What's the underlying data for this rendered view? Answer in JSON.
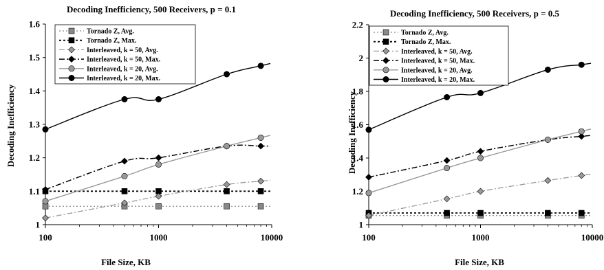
{
  "chart_data": [
    {
      "type": "line",
      "title": "Decoding Inefficiency, 500 Receivers, p = 0.1",
      "xlabel": "File Size, KB",
      "ylabel": "Decoding Inefficiency",
      "xscale": "log",
      "xlim": [
        100,
        10000
      ],
      "ylim": [
        1,
        1.6
      ],
      "xticks": [
        "100",
        "1000",
        "10000"
      ],
      "yticks": [
        "1",
        "1.1",
        "1.2",
        "1.3",
        "1.4",
        "1.5",
        "1.6"
      ],
      "legend_position": "top-left",
      "series": [
        {
          "name": "Tornado Z, Avg.",
          "x": [
            100,
            500,
            1000,
            4000,
            8000
          ],
          "values": [
            1.055,
            1.055,
            1.055,
            1.055,
            1.055
          ],
          "color": "#888888",
          "marker": "square",
          "line": "dotted-gray"
        },
        {
          "name": "Tornado Z, Max.",
          "x": [
            100,
            500,
            1000,
            4000,
            8000
          ],
          "values": [
            1.1,
            1.1,
            1.1,
            1.1,
            1.1
          ],
          "color": "#000000",
          "marker": "square",
          "line": "dotted-black"
        },
        {
          "name": "Interleaved, k = 50, Avg.",
          "x": [
            100,
            500,
            1000,
            4000,
            8000
          ],
          "values": [
            1.02,
            1.065,
            1.085,
            1.12,
            1.13
          ],
          "color": "#999999",
          "marker": "diamond",
          "line": "dashdot-gray"
        },
        {
          "name": "Interleaved, k = 50, Max.",
          "x": [
            100,
            500,
            1000,
            4000,
            8000
          ],
          "values": [
            1.105,
            1.19,
            1.2,
            1.235,
            1.235
          ],
          "color": "#000000",
          "marker": "diamond",
          "line": "dashdot-black"
        },
        {
          "name": "Interleaved, k = 20, Avg.",
          "x": [
            100,
            500,
            1000,
            4000,
            8000
          ],
          "values": [
            1.07,
            1.145,
            1.18,
            1.235,
            1.26
          ],
          "color": "#999999",
          "marker": "circle",
          "line": "solid"
        },
        {
          "name": "Interleaved, k = 20, Max.",
          "x": [
            100,
            500,
            1000,
            4000,
            8000
          ],
          "values": [
            1.285,
            1.375,
            1.375,
            1.45,
            1.475
          ],
          "color": "#000000",
          "marker": "circle",
          "line": "solid"
        }
      ]
    },
    {
      "type": "line",
      "title": "Decoding Inefficiency, 500 Receivers, p = 0.5",
      "xlabel": "File Size, KB",
      "ylabel": "Decoding Inefficiency",
      "xscale": "log",
      "xlim": [
        100,
        10000
      ],
      "ylim": [
        1,
        2.2
      ],
      "xticks": [
        "100",
        "1000",
        "10000"
      ],
      "yticks": [
        "1",
        "1.2",
        "1.4",
        "1.6",
        "1.8",
        "2",
        "2.2"
      ],
      "legend_position": "top-left",
      "series": [
        {
          "name": "Tornado Z, Avg.",
          "x": [
            100,
            500,
            1000,
            4000,
            8000
          ],
          "values": [
            1.055,
            1.055,
            1.055,
            1.055,
            1.055
          ],
          "color": "#888888",
          "marker": "square",
          "line": "dotted-gray"
        },
        {
          "name": "Tornado Z, Max.",
          "x": [
            100,
            500,
            1000,
            4000,
            8000
          ],
          "values": [
            1.07,
            1.07,
            1.07,
            1.07,
            1.07
          ],
          "color": "#000000",
          "marker": "square",
          "line": "dotted-black"
        },
        {
          "name": "Interleaved, k = 50, Avg.",
          "x": [
            100,
            500,
            1000,
            4000,
            8000
          ],
          "values": [
            1.055,
            1.155,
            1.2,
            1.265,
            1.295
          ],
          "color": "#999999",
          "marker": "diamond",
          "line": "dashdot-gray"
        },
        {
          "name": "Interleaved, k = 50, Max.",
          "x": [
            100,
            500,
            1000,
            4000,
            8000
          ],
          "values": [
            1.285,
            1.385,
            1.44,
            1.51,
            1.53
          ],
          "color": "#000000",
          "marker": "diamond",
          "line": "dashdot-black"
        },
        {
          "name": "Interleaved, k = 20, Avg.",
          "x": [
            100,
            500,
            1000,
            4000,
            8000
          ],
          "values": [
            1.19,
            1.34,
            1.4,
            1.51,
            1.56
          ],
          "color": "#999999",
          "marker": "circle",
          "line": "solid"
        },
        {
          "name": "Interleaved, k = 20, Max.",
          "x": [
            100,
            500,
            1000,
            4000,
            8000
          ],
          "values": [
            1.57,
            1.765,
            1.79,
            1.93,
            1.96
          ],
          "color": "#000000",
          "marker": "circle",
          "line": "solid"
        }
      ]
    }
  ]
}
